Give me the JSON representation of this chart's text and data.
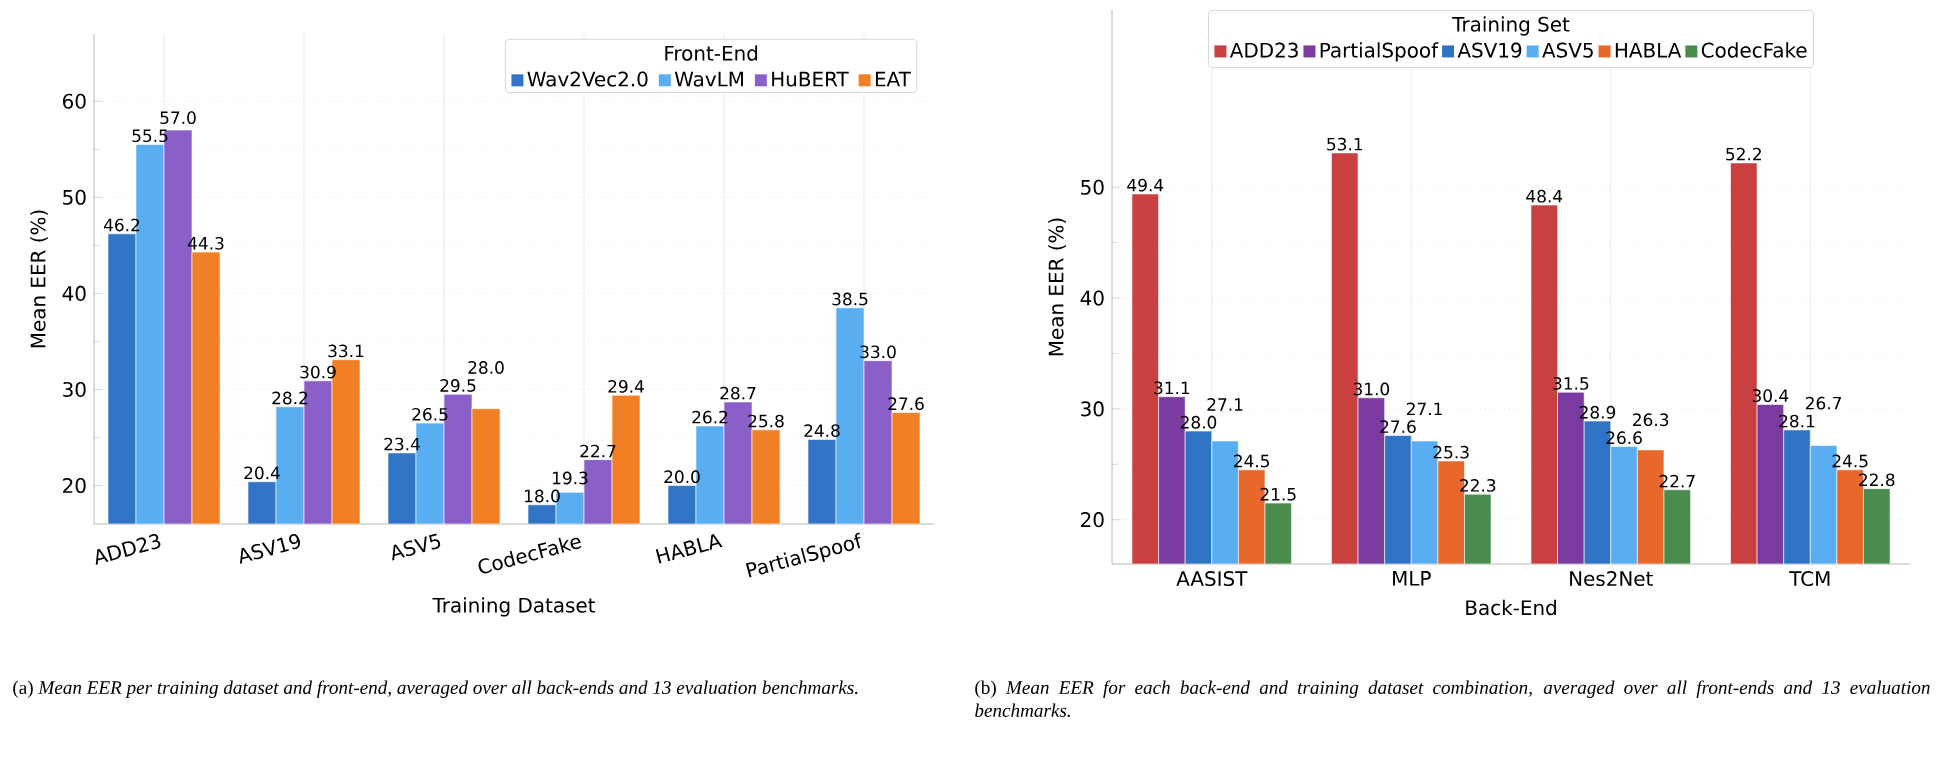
{
  "chart_data": [
    {
      "type": "bar",
      "xlabel": "Training Dataset",
      "ylabel": "Mean EER (%)",
      "legend_title": "Front-End",
      "categories": [
        "ADD23",
        "ASV19",
        "ASV5",
        "CodecFake",
        "HABLA",
        "PartialSpoof"
      ],
      "series": [
        {
          "name": "Wav2Vec2.0",
          "color": "#3274c5",
          "values": [
            46.2,
            20.4,
            23.4,
            18.0,
            20.0,
            24.8
          ],
          "value_labels": [
            "46.2",
            "20.4",
            "23.4",
            "18.0",
            "20.0",
            "24.8"
          ]
        },
        {
          "name": "WavLM",
          "color": "#58aef0",
          "values": [
            55.5,
            28.2,
            26.5,
            19.3,
            26.2,
            38.5
          ],
          "value_labels": [
            "55.5",
            "28.2",
            "26.5",
            "19.3",
            "26.2",
            "38.5"
          ]
        },
        {
          "name": "HuBERT",
          "color": "#8a5fc8",
          "values": [
            57.0,
            30.9,
            29.5,
            22.7,
            28.7,
            33.0
          ],
          "value_labels": [
            "57.0",
            "30.9",
            "29.5",
            "22.7",
            "28.7",
            "33.0"
          ]
        },
        {
          "name": "EAT",
          "color": "#f07f25",
          "values": [
            44.3,
            33.1,
            28.0,
            29.4,
            25.8,
            27.6
          ],
          "value_labels": [
            "44.3",
            "33.1",
            "28.0",
            "29.4",
            "25.8",
            "27.6"
          ]
        }
      ],
      "ylim": [
        16,
        67
      ],
      "yticks": [
        20,
        30,
        40,
        50,
        60
      ],
      "grid": true,
      "legend": "top right",
      "annotations": [
        "(a) *Mean EER per training dataset and front-end, averaged over all back-ends and 13 evaluation benchmarks.*"
      ]
    },
    {
      "type": "bar",
      "xlabel": "Back-End",
      "ylabel": "Mean EER (%)",
      "legend_title": "Training Set",
      "categories": [
        "AASIST",
        "MLP",
        "Nes2Net",
        "TCM"
      ],
      "series": [
        {
          "name": "ADD23",
          "color": "#c94040",
          "values": [
            49.4,
            53.1,
            48.4,
            52.2
          ],
          "value_labels": [
            "49.4",
            "53.1",
            "48.4",
            "52.2"
          ]
        },
        {
          "name": "PartialSpoof",
          "color": "#7a3aa0",
          "values": [
            31.1,
            31.0,
            31.5,
            30.4
          ],
          "value_labels": [
            "31.1",
            "31.0",
            "31.5",
            "30.4"
          ]
        },
        {
          "name": "ASV19",
          "color": "#2f74c4",
          "values": [
            28.0,
            27.6,
            28.9,
            28.1
          ],
          "value_labels": [
            "28.0",
            "27.6",
            "28.9",
            "28.1"
          ]
        },
        {
          "name": "ASV5",
          "color": "#58aef0",
          "values": [
            27.1,
            27.1,
            26.6,
            26.7
          ],
          "value_labels": [
            "27.1",
            "27.1",
            "26.6",
            "26.7"
          ]
        },
        {
          "name": "HABLA",
          "color": "#e8672a",
          "values": [
            24.5,
            25.3,
            26.3,
            24.5
          ],
          "value_labels": [
            "24.5",
            "25.3",
            "26.3",
            "24.5"
          ]
        },
        {
          "name": "CodecFake",
          "color": "#4a8c4e",
          "values": [
            21.5,
            22.3,
            22.7,
            22.8
          ],
          "value_labels": [
            "21.5",
            "22.3",
            "22.7",
            "22.8"
          ]
        }
      ],
      "ylim": [
        16,
        66
      ],
      "yticks": [
        20,
        30,
        40,
        50
      ],
      "grid": true,
      "legend": "top",
      "annotations": [
        "(b) *Mean EER for each back-end and training dataset combination, averaged over all front-ends and 13 evaluation benchmarks.*"
      ]
    }
  ]
}
